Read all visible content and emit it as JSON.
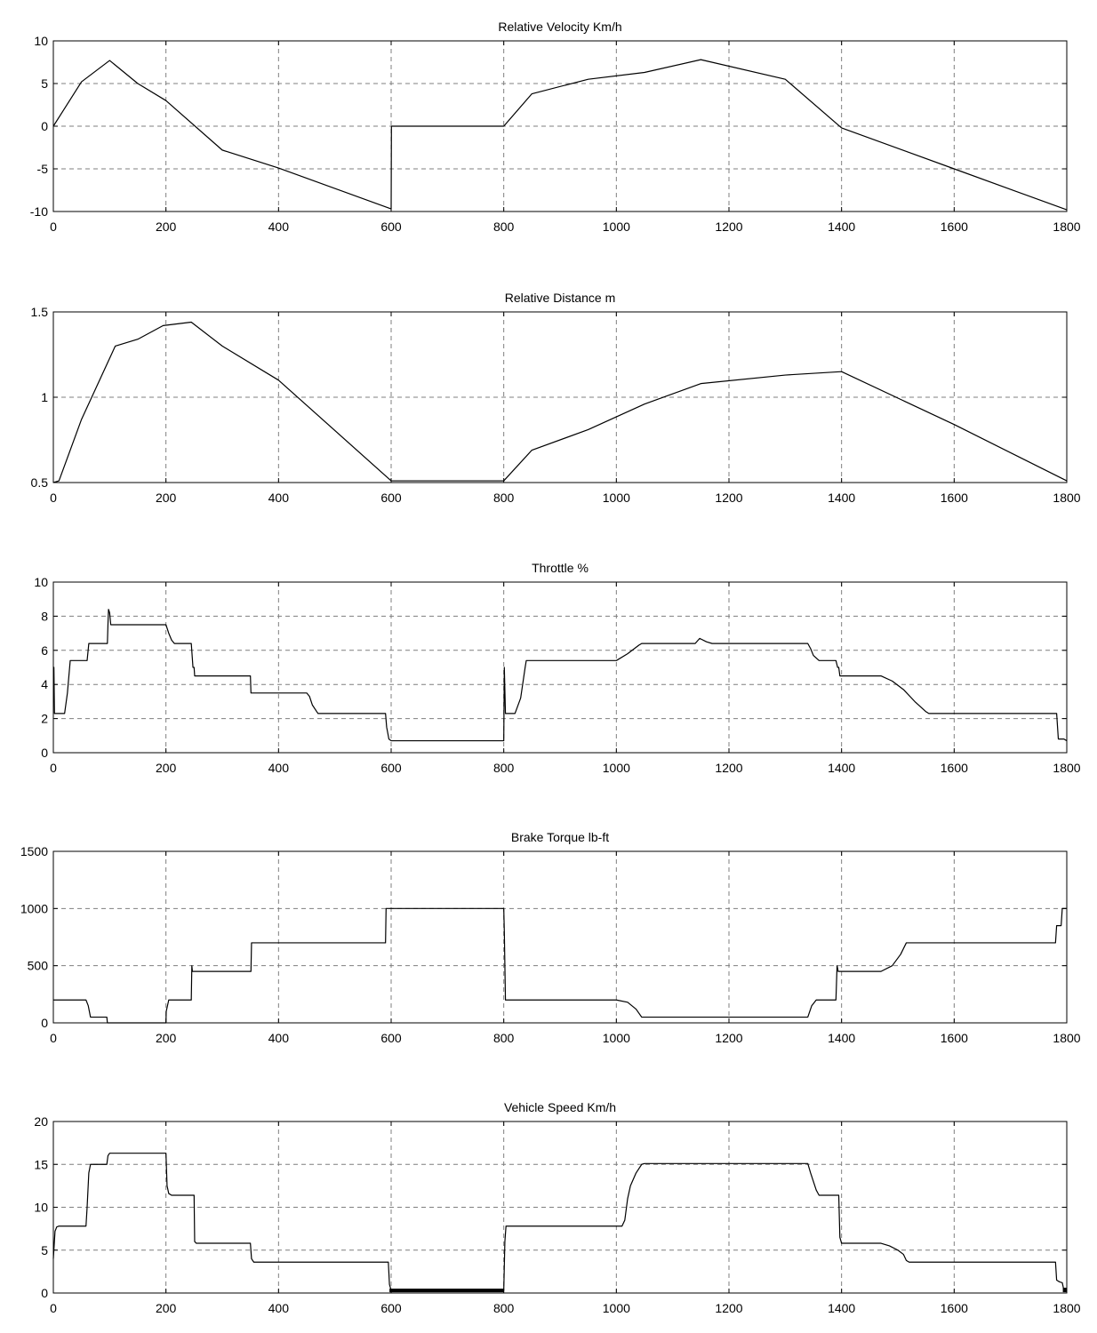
{
  "chart_data": [
    {
      "type": "line",
      "title": "Relative Velocity Km/h",
      "xlabel": "",
      "ylabel": "",
      "xlim": [
        0,
        1800
      ],
      "ylim": [
        -10,
        10
      ],
      "xticks": [
        0,
        200,
        400,
        600,
        800,
        1000,
        1200,
        1400,
        1600,
        1800
      ],
      "yticks": [
        -10,
        -5,
        0,
        5,
        10
      ],
      "grid": true,
      "series": [
        {
          "x": [
            0,
            50,
            100,
            150,
            200,
            300,
            400,
            600,
            600.5,
            800,
            850,
            950,
            1050,
            1150,
            1300,
            1400,
            1600,
            1800
          ],
          "y": [
            0,
            5.2,
            7.7,
            5.0,
            3.0,
            -2.8,
            -4.9,
            -9.7,
            0,
            0,
            3.8,
            5.5,
            6.3,
            7.8,
            5.5,
            -0.2,
            -5.0,
            -9.8
          ]
        }
      ]
    },
    {
      "type": "line",
      "title": "Relative Distance m",
      "xlabel": "",
      "ylabel": "",
      "xlim": [
        0,
        1800
      ],
      "ylim": [
        0.5,
        1.5
      ],
      "xticks": [
        0,
        200,
        400,
        600,
        800,
        1000,
        1200,
        1400,
        1600,
        1800
      ],
      "yticks": [
        0.5,
        1,
        1.5
      ],
      "grid": true,
      "series": [
        {
          "x": [
            0,
            10,
            50,
            110,
            150,
            195,
            245,
            300,
            400,
            600,
            800,
            850,
            950,
            1050,
            1150,
            1300,
            1400,
            1600,
            1800
          ],
          "y": [
            0.5,
            0.51,
            0.87,
            1.3,
            1.34,
            1.42,
            1.44,
            1.3,
            1.1,
            0.51,
            0.51,
            0.69,
            0.81,
            0.96,
            1.08,
            1.13,
            1.15,
            0.84,
            0.51
          ]
        }
      ]
    },
    {
      "type": "line",
      "title": "Throttle %",
      "xlabel": "",
      "ylabel": "",
      "xlim": [
        0,
        1800
      ],
      "ylim": [
        0,
        10
      ],
      "xticks": [
        0,
        200,
        400,
        600,
        800,
        1000,
        1200,
        1400,
        1600,
        1800
      ],
      "yticks": [
        0,
        2,
        4,
        6,
        8,
        10
      ],
      "grid": true,
      "series": [
        {
          "x": [
            0,
            1,
            2,
            20,
            25,
            30,
            60,
            63,
            96,
            97,
            98,
            100,
            102,
            200,
            205,
            210,
            215,
            245,
            248,
            250,
            251,
            350,
            351,
            355,
            357,
            450,
            455,
            460,
            468,
            470,
            590,
            592,
            596,
            600,
            800,
            801,
            803,
            805,
            820,
            830,
            838,
            840,
            1000,
            1020,
            1040,
            1045,
            1140,
            1148,
            1160,
            1170,
            1340,
            1345,
            1350,
            1360,
            1390,
            1393,
            1395,
            1397,
            1470,
            1490,
            1510,
            1530,
            1550,
            1555,
            1780,
            1782,
            1785,
            1790,
            1795,
            1800
          ],
          "y": [
            5.0,
            5.0,
            2.3,
            2.3,
            3.5,
            5.4,
            5.4,
            6.4,
            6.4,
            7.5,
            8.4,
            8.2,
            7.5,
            7.5,
            7.0,
            6.6,
            6.4,
            6.4,
            5.0,
            5.0,
            4.5,
            4.5,
            3.5,
            3.5,
            3.5,
            3.5,
            3.3,
            2.8,
            2.4,
            2.3,
            2.3,
            1.5,
            0.8,
            0.7,
            0.7,
            5.0,
            2.3,
            2.3,
            2.3,
            3.2,
            5.0,
            5.4,
            5.4,
            5.8,
            6.3,
            6.4,
            6.4,
            6.7,
            6.5,
            6.4,
            6.4,
            6.1,
            5.7,
            5.4,
            5.4,
            5.0,
            5.0,
            4.5,
            4.5,
            4.2,
            3.7,
            3.0,
            2.4,
            2.3,
            2.3,
            2.3,
            0.8,
            0.8,
            0.8,
            0.7
          ]
        }
      ]
    },
    {
      "type": "line",
      "title": "Brake Torque lb-ft",
      "xlabel": "",
      "ylabel": "",
      "xlim": [
        0,
        1800
      ],
      "ylim": [
        0,
        1500
      ],
      "xticks": [
        0,
        200,
        400,
        600,
        800,
        1000,
        1200,
        1400,
        1600,
        1800
      ],
      "yticks": [
        0,
        500,
        1000,
        1500
      ],
      "grid": true,
      "series": [
        {
          "x": [
            0,
            58,
            62,
            66,
            95,
            96,
            200,
            200.5,
            205,
            245,
            246,
            247,
            248,
            250,
            351,
            352,
            590,
            591,
            800,
            801,
            803,
            1000,
            1020,
            1035,
            1045,
            1340,
            1347,
            1355,
            1390,
            1392,
            1394,
            1470,
            1490,
            1505,
            1515,
            1780,
            1782,
            1790,
            1792,
            1800
          ],
          "y": [
            200,
            200,
            150,
            50,
            50,
            0,
            0,
            100,
            200,
            200,
            500,
            450,
            450,
            450,
            450,
            700,
            700,
            1000,
            1000,
            800,
            200,
            200,
            180,
            120,
            50,
            50,
            150,
            200,
            200,
            500,
            450,
            450,
            500,
            600,
            700,
            700,
            850,
            850,
            1000,
            1000
          ]
        }
      ]
    },
    {
      "type": "line",
      "title": "Vehicle Speed Km/h",
      "xlabel": "",
      "ylabel": "",
      "xlim": [
        0,
        1800
      ],
      "ylim": [
        0,
        20
      ],
      "xticks": [
        0,
        200,
        400,
        600,
        800,
        1000,
        1200,
        1400,
        1600,
        1800
      ],
      "yticks": [
        0,
        5,
        10,
        15,
        20
      ],
      "grid": true,
      "series": [
        {
          "x": [
            0,
            3,
            6,
            10,
            58,
            60,
            63,
            66,
            70,
            95,
            97,
            100,
            103,
            200,
            202,
            205,
            210,
            250,
            251,
            254,
            350,
            352,
            356,
            595,
            597,
            600,
            800,
            802,
            804,
            1010,
            1015,
            1020,
            1025,
            1035,
            1045,
            1050,
            1340,
            1345,
            1350,
            1355,
            1360,
            1395,
            1397,
            1400,
            1470,
            1485,
            1500,
            1510,
            1515,
            1520,
            1780,
            1782,
            1787,
            1792,
            1795,
            1800
          ],
          "y": [
            4.0,
            7.2,
            7.7,
            7.8,
            7.8,
            10.0,
            14.0,
            15.0,
            15.0,
            15.0,
            16.0,
            16.3,
            16.3,
            16.3,
            12.5,
            11.6,
            11.4,
            11.4,
            6.0,
            5.8,
            5.8,
            4.0,
            3.6,
            3.6,
            1.0,
            0.3,
            0.3,
            6.0,
            7.8,
            7.8,
            8.5,
            11.0,
            12.5,
            14.0,
            15.0,
            15.1,
            15.1,
            14.0,
            13.0,
            12.0,
            11.4,
            11.4,
            6.5,
            5.8,
            5.8,
            5.5,
            5.0,
            4.5,
            3.8,
            3.6,
            3.6,
            1.5,
            1.3,
            1.2,
            0.3,
            0.3
          ]
        }
      ]
    }
  ]
}
